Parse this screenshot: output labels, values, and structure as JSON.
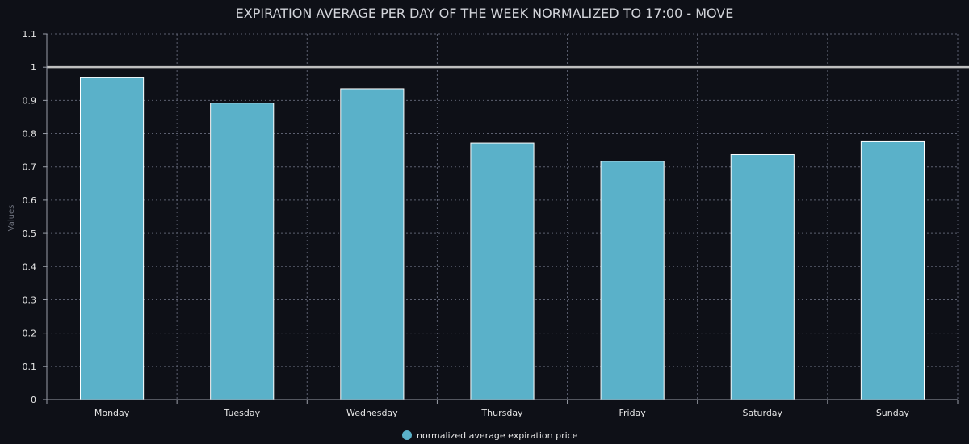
{
  "chart_data": {
    "type": "bar",
    "title": "EXPIRATION AVERAGE PER DAY OF THE WEEK NORMALIZED TO 17:00 - MOVE",
    "xlabel": "",
    "ylabel": "Values",
    "categories": [
      "Monday",
      "Tuesday",
      "Wednesday",
      "Thursday",
      "Friday",
      "Saturday",
      "Sunday"
    ],
    "series": [
      {
        "name": "normalized average expiration price",
        "values": [
          0.968,
          0.892,
          0.935,
          0.772,
          0.717,
          0.737,
          0.776
        ]
      }
    ],
    "ylim": [
      0,
      1.1
    ],
    "yticks": [
      "0",
      "0.1",
      "0.2",
      "0.3",
      "0.4",
      "0.5",
      "0.6",
      "0.7",
      "0.8",
      "0.9",
      "1",
      "1.1"
    ],
    "reference_line": 1,
    "grid": true,
    "legend_position": "bottom-center",
    "colors": {
      "bar": "#5ab1c9",
      "bar_border": "#ffffff",
      "background": "#0e1017",
      "grid": "#5c6070",
      "reference_line": "#bfbfbf"
    }
  }
}
